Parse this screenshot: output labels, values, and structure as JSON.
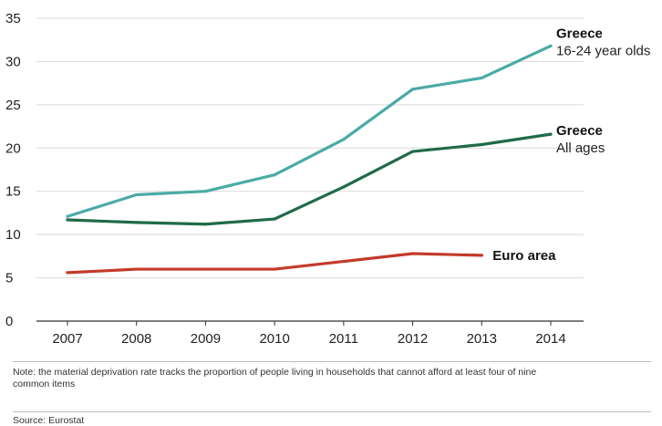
{
  "chart_data": {
    "type": "line",
    "categories": [
      "2007",
      "2008",
      "2009",
      "2010",
      "2011",
      "2012",
      "2013",
      "2014"
    ],
    "ylim": [
      0,
      35
    ],
    "yticks": [
      "0",
      "5",
      "10",
      "15",
      "20",
      "25",
      "30",
      "35"
    ],
    "grid": true,
    "series": [
      {
        "key": "greece_youth",
        "name": "Greece",
        "name2": "16-24 year olds",
        "color": "#4aaba6",
        "values": [
          12.1,
          14.6,
          15.0,
          16.9,
          21.0,
          26.8,
          28.1,
          31.8
        ]
      },
      {
        "key": "greece_all",
        "name": "Greece",
        "name2": "All ages",
        "color": "#1f6b48",
        "values": [
          11.7,
          11.4,
          11.2,
          11.8,
          15.5,
          19.6,
          20.4,
          21.6
        ]
      },
      {
        "key": "euro",
        "name": "Euro area",
        "name2": "",
        "color": "#c43a2a",
        "values": [
          5.6,
          6.0,
          6.0,
          6.0,
          6.9,
          7.8,
          7.6,
          null
        ]
      }
    ]
  },
  "note": "Note: the material deprivation rate tracks the proportion of people living in households that cannot afford at least four of nine common items",
  "source": "Source: Eurostat"
}
